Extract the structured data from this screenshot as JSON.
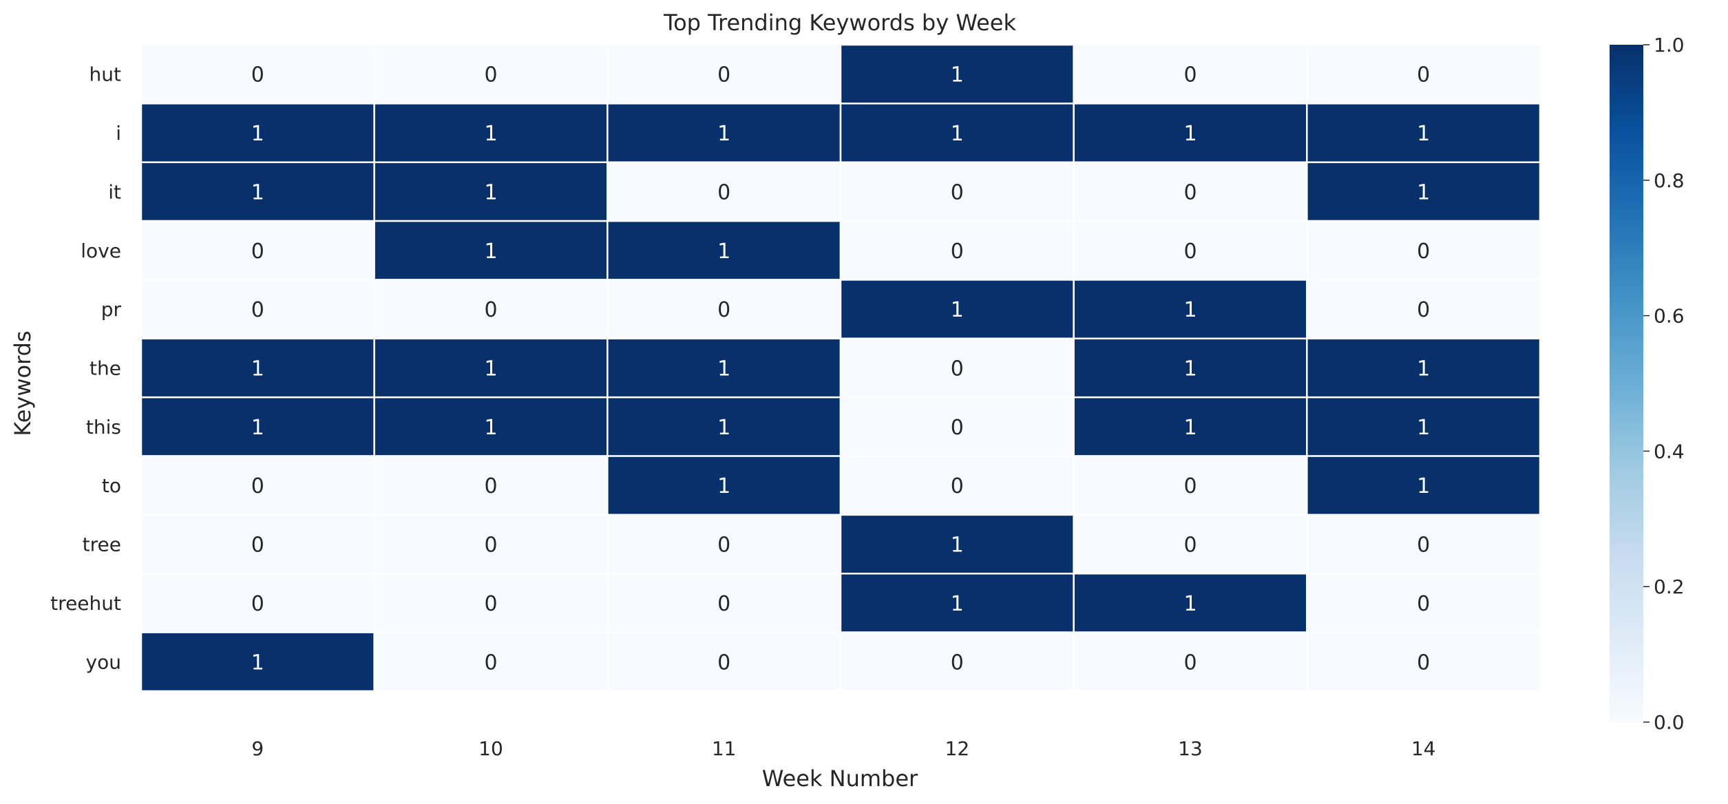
{
  "chart_data": {
    "type": "heatmap",
    "title": "Top Trending Keywords by Week",
    "xlabel": "Week Number",
    "ylabel": "Keywords",
    "x": [
      "9",
      "10",
      "11",
      "12",
      "13",
      "14"
    ],
    "y": [
      "hut",
      "i",
      "it",
      "love",
      "pr",
      "the",
      "this",
      "to",
      "tree",
      "treehut",
      "you"
    ],
    "values": [
      [
        0,
        0,
        0,
        1,
        0,
        0
      ],
      [
        1,
        1,
        1,
        1,
        1,
        1
      ],
      [
        1,
        1,
        0,
        0,
        0,
        1
      ],
      [
        0,
        1,
        1,
        0,
        0,
        0
      ],
      [
        0,
        0,
        0,
        1,
        1,
        0
      ],
      [
        1,
        1,
        1,
        0,
        1,
        1
      ],
      [
        1,
        1,
        1,
        0,
        1,
        1
      ],
      [
        0,
        0,
        1,
        0,
        0,
        1
      ],
      [
        0,
        0,
        0,
        1,
        0,
        0
      ],
      [
        0,
        0,
        0,
        1,
        1,
        0
      ],
      [
        1,
        0,
        0,
        0,
        0,
        0
      ]
    ],
    "colorbar": {
      "range": [
        0.0,
        1.0
      ],
      "ticks": [
        "0.0",
        "0.2",
        "0.4",
        "0.6",
        "0.8",
        "1.0"
      ],
      "colormap": "Blues",
      "low_color": "#f7fbff",
      "high_color": "#08306b"
    },
    "annotations": true,
    "cell_gridlines": true,
    "low_text_color": "#262626",
    "high_text_color": "#ffffff"
  }
}
